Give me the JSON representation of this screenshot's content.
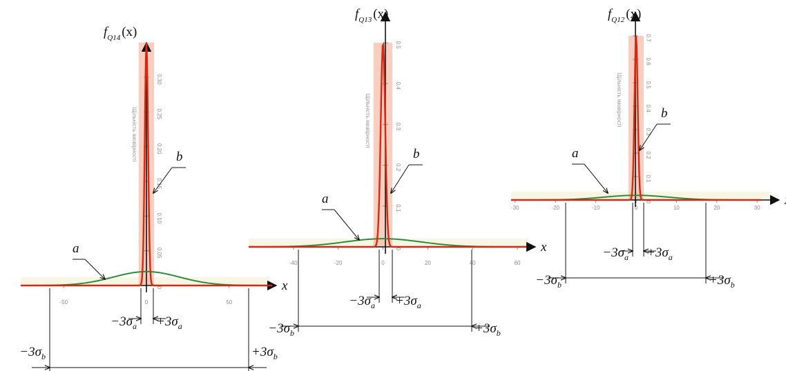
{
  "colors": {
    "curve_a": "#2e8b3a",
    "curve_b": "#d42a12",
    "curve_b_glow": "#f3a58e",
    "axis": "#111111"
  },
  "chart_data": [
    {
      "type": "line",
      "function_label": "Q14",
      "y_axis_title": "Щільність імовірності",
      "x_ticks": [
        "-50",
        "0",
        "50"
      ],
      "y_ticks": [
        "0",
        "0.05",
        "0.10",
        "0.15",
        "0.20",
        "0.25",
        "0.30"
      ],
      "xlim": [
        -76,
        76
      ],
      "ylim": [
        0,
        0.3
      ],
      "series": [
        {
          "name": "a",
          "kind": "normal",
          "mean": 0,
          "sd": 20,
          "peak": 0.02
        },
        {
          "name": "b",
          "kind": "normal",
          "mean": 0,
          "sd": 1,
          "peak": 0.35
        }
      ],
      "annotations": {
        "a": "a",
        "b": "b",
        "minus_sigma_a": "−3σ",
        "plus_sigma_a": "+3σ",
        "minus_sigma_b": "−3σ",
        "plus_sigma_b": "+3σ",
        "sub_a": "a",
        "sub_b": "b",
        "x_axis": "x",
        "f_label": "f",
        "f_arg": "(x)"
      }
    },
    {
      "type": "line",
      "function_label": "Q13",
      "y_axis_title": "Щільність імовірності",
      "x_ticks": [
        "-40",
        "-20",
        "0",
        "20",
        "40",
        "60"
      ],
      "y_ticks": [
        "0",
        "0.1",
        "0.2",
        "0.3",
        "0.4",
        "0.5"
      ],
      "xlim": [
        -60,
        64
      ],
      "ylim": [
        0,
        0.5
      ],
      "series": [
        {
          "name": "a",
          "kind": "normal",
          "mean": 0,
          "sd": 17,
          "peak": 0.02
        },
        {
          "name": "b",
          "kind": "normal",
          "mean": 0,
          "sd": 1,
          "peak": 0.5
        }
      ],
      "annotations": {
        "a": "a",
        "b": "b",
        "minus_sigma_a": "−3σ",
        "plus_sigma_a": "+3σ",
        "minus_sigma_b": "−3σ",
        "plus_sigma_b": "+3σ",
        "sub_a": "a",
        "sub_b": "b",
        "x_axis": "x",
        "f_label": "f",
        "f_arg": "(x)"
      }
    },
    {
      "type": "line",
      "function_label": "Q12",
      "y_axis_title": "Щільність імовірності",
      "x_ticks": [
        "-30",
        "-20",
        "-10",
        "0",
        "10",
        "20",
        "30"
      ],
      "y_ticks": [
        "0",
        "0.1",
        "0.2",
        "0.3",
        "0.4",
        "0.5",
        "0.6",
        "0.7"
      ],
      "xlim": [
        -31,
        31
      ],
      "ylim": [
        0,
        0.7
      ],
      "series": [
        {
          "name": "a",
          "kind": "normal",
          "mean": 0,
          "sd": 8,
          "peak": 0.02
        },
        {
          "name": "b",
          "kind": "normal",
          "mean": 0,
          "sd": 0.4,
          "peak": 0.7
        }
      ],
      "annotations": {
        "a": "a",
        "b": "b",
        "minus_sigma_a": "−3σ",
        "plus_sigma_a": "+3σ",
        "minus_sigma_b": "−3σ",
        "plus_sigma_b": "+3σ",
        "sub_a": "a",
        "sub_b": "b",
        "x_axis": "x",
        "f_label": "f",
        "f_arg": "(x)"
      }
    }
  ]
}
